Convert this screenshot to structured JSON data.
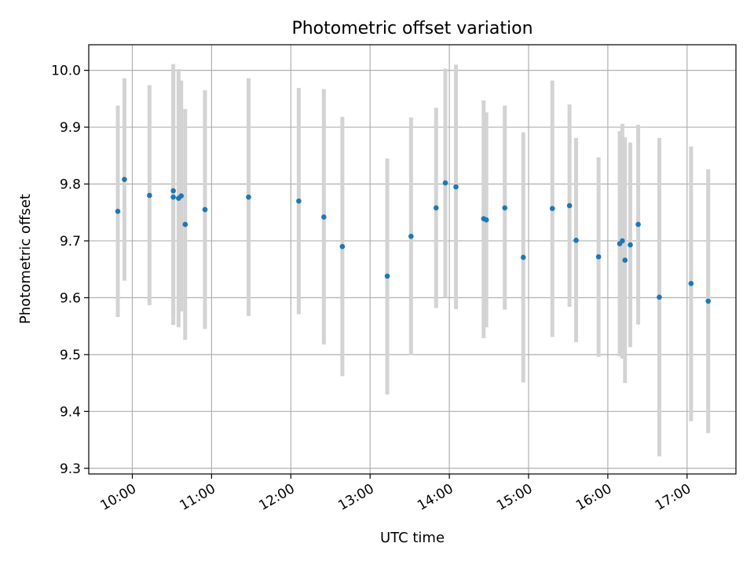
{
  "chart_data": {
    "type": "scatter",
    "title": "Photometric offset variation",
    "xlabel": "UTC time",
    "ylabel": "Photometric offset",
    "grid": true,
    "xlim": [
      "09:27",
      "17:37"
    ],
    "ylim": [
      9.29,
      10.045
    ],
    "x_ticks": [
      "10:00",
      "11:00",
      "12:00",
      "13:00",
      "14:00",
      "15:00",
      "16:00",
      "17:00"
    ],
    "y_ticks": [
      9.3,
      9.4,
      9.5,
      9.6,
      9.7,
      9.8,
      9.9,
      10.0
    ],
    "colors": {
      "point": "#1f77b4",
      "errorbar": "#d3d3d3",
      "grid": "#b0b0b0"
    },
    "points": [
      {
        "x": "09:49",
        "y": 9.752,
        "low": 9.566,
        "high": 9.938
      },
      {
        "x": "09:54",
        "y": 9.808,
        "low": 9.63,
        "high": 9.986
      },
      {
        "x": "10:13",
        "y": 9.78,
        "low": 9.587,
        "high": 9.974
      },
      {
        "x": "10:31",
        "y": 9.788,
        "low": 9.565,
        "high": 10.011
      },
      {
        "x": "10:31",
        "y": 9.777,
        "low": 9.552,
        "high": 10.001
      },
      {
        "x": "10:35",
        "y": 9.775,
        "low": 9.548,
        "high": 10.002
      },
      {
        "x": "10:37",
        "y": 9.779,
        "low": 9.576,
        "high": 9.982
      },
      {
        "x": "10:40",
        "y": 9.729,
        "low": 9.526,
        "high": 9.932
      },
      {
        "x": "10:55",
        "y": 9.755,
        "low": 9.545,
        "high": 9.965
      },
      {
        "x": "11:28",
        "y": 9.777,
        "low": 9.568,
        "high": 9.986
      },
      {
        "x": "12:06",
        "y": 9.77,
        "low": 9.571,
        "high": 9.969
      },
      {
        "x": "12:25",
        "y": 9.742,
        "low": 9.518,
        "high": 9.967
      },
      {
        "x": "12:39",
        "y": 9.69,
        "low": 9.462,
        "high": 9.918
      },
      {
        "x": "13:13",
        "y": 9.638,
        "low": 9.43,
        "high": 9.845
      },
      {
        "x": "13:31",
        "y": 9.708,
        "low": 9.499,
        "high": 9.917
      },
      {
        "x": "13:50",
        "y": 9.758,
        "low": 9.582,
        "high": 9.934
      },
      {
        "x": "13:57",
        "y": 9.802,
        "low": 9.6,
        "high": 10.003
      },
      {
        "x": "14:05",
        "y": 9.795,
        "low": 9.58,
        "high": 10.01
      },
      {
        "x": "14:26",
        "y": 9.739,
        "low": 9.529,
        "high": 9.947
      },
      {
        "x": "14:28",
        "y": 9.737,
        "low": 9.548,
        "high": 9.926
      },
      {
        "x": "14:42",
        "y": 9.758,
        "low": 9.579,
        "high": 9.938
      },
      {
        "x": "14:56",
        "y": 9.671,
        "low": 9.451,
        "high": 9.891
      },
      {
        "x": "15:18",
        "y": 9.757,
        "low": 9.531,
        "high": 9.982
      },
      {
        "x": "15:31",
        "y": 9.762,
        "low": 9.584,
        "high": 9.94
      },
      {
        "x": "15:36",
        "y": 9.701,
        "low": 9.522,
        "high": 9.881
      },
      {
        "x": "15:53",
        "y": 9.672,
        "low": 9.496,
        "high": 9.847
      },
      {
        "x": "16:09",
        "y": 9.695,
        "low": 9.497,
        "high": 9.893
      },
      {
        "x": "16:11",
        "y": 9.7,
        "low": 9.493,
        "high": 9.906
      },
      {
        "x": "16:13",
        "y": 9.666,
        "low": 9.45,
        "high": 9.882
      },
      {
        "x": "16:17",
        "y": 9.693,
        "low": 9.513,
        "high": 9.873
      },
      {
        "x": "16:23",
        "y": 9.729,
        "low": 9.553,
        "high": 9.904
      },
      {
        "x": "16:39",
        "y": 9.601,
        "low": 9.321,
        "high": 9.881
      },
      {
        "x": "17:03",
        "y": 9.625,
        "low": 9.383,
        "high": 9.866
      },
      {
        "x": "17:16",
        "y": 9.594,
        "low": 9.362,
        "high": 9.826
      }
    ]
  }
}
